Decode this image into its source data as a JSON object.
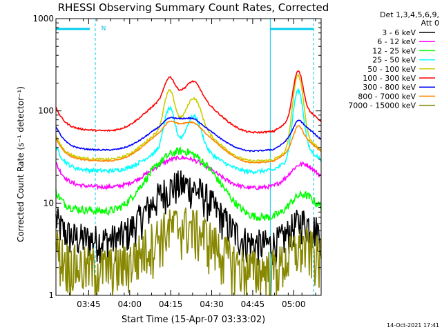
{
  "chart_data": {
    "type": "line",
    "title": "RHESSI Observing Summary Count Rates, Corrected",
    "xlabel": "Start Time (15-Apr-07 03:33:02)",
    "ylabel": "Corrected Count Rate (s⁻¹ detector⁻¹)",
    "yscale": "log",
    "ylim": [
      1,
      1000
    ],
    "xlim_minutes": [
      0,
      97
    ],
    "y_ticks": [
      "1",
      "10",
      "100",
      "1000"
    ],
    "x_ticks": [
      {
        "label": "03:45",
        "t": 11.97
      },
      {
        "label": "04:00",
        "t": 26.97
      },
      {
        "label": "04:15",
        "t": 41.97
      },
      {
        "label": "04:30",
        "t": 56.97
      },
      {
        "label": "04:45",
        "t": 71.97
      },
      {
        "label": "05:00",
        "t": 86.97
      }
    ],
    "legend_header": [
      "Det 1,3,4,5,6,9,",
      "Att 0"
    ],
    "legend_position": "right",
    "night_marker": "N",
    "footer": "14-Oct-2021 17:41",
    "series": [
      {
        "name": "3 - 6 keV",
        "color": "#000000",
        "base": 3.3,
        "peak": 18,
        "noise": 0.18,
        "flare": 0
      },
      {
        "name": "6 - 12 keV",
        "color": "#ff00ff",
        "base": 14,
        "peak": 34,
        "noise": 0.05,
        "flare": 0
      },
      {
        "name": "12 - 25 keV",
        "color": "#00ff00",
        "base": 6.5,
        "peak": 42,
        "noise": 0.1,
        "flare": 0
      },
      {
        "name": "25 - 50 keV",
        "color": "#00ffff",
        "base": 21,
        "peak": 50,
        "noise": 0.05,
        "flare": 3.0
      },
      {
        "name": "50 - 100 keV",
        "color": "#cccc00",
        "base": 27,
        "peak": 85,
        "noise": 0.03,
        "flare": 3.5
      },
      {
        "name": "100 - 300 keV",
        "color": "#ff0000",
        "base": 55,
        "peak": 180,
        "noise": 0.02,
        "flare": 1.5
      },
      {
        "name": "300 - 800 keV",
        "color": "#0000ff",
        "base": 35,
        "peak": 90,
        "noise": 0.015,
        "flare": 0.2
      },
      {
        "name": "800 - 7000 keV",
        "color": "#ff8800",
        "base": 26,
        "peak": 80,
        "noise": 0.015,
        "flare": 0.4
      },
      {
        "name": "7000 - 15000 keV",
        "color": "#888800",
        "base": 1.8,
        "peak": 6.5,
        "noise": 0.25,
        "flare": 0
      }
    ]
  }
}
